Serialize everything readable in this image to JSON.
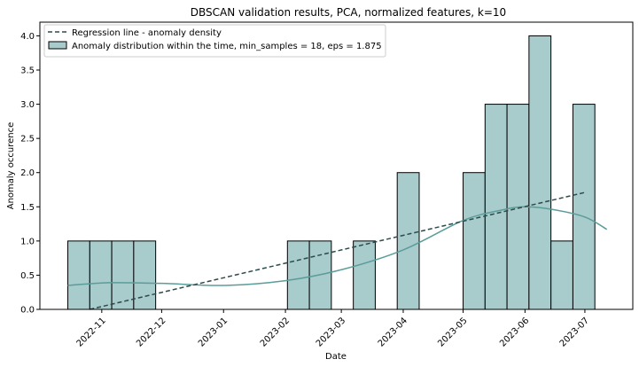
{
  "chart_data": {
    "type": "bar",
    "title": "DBSCAN validation results, PCA, normalized features, k=10",
    "xlabel": "Date",
    "ylabel": "Anomaly occurence",
    "x_tick_labels": [
      "2022-11",
      "2022-12",
      "2023-01",
      "2023-02",
      "2023-03",
      "2023-04",
      "2023-05",
      "2023-06",
      "2023-07"
    ],
    "x_tick_dates": [
      "2022-11-01",
      "2022-12-01",
      "2023-01-01",
      "2023-02-01",
      "2023-03-01",
      "2023-04-01",
      "2023-05-01",
      "2023-06-01",
      "2023-07-01"
    ],
    "xlim": [
      "2022-10-01",
      "2023-07-25"
    ],
    "y_ticks": [
      "0.0",
      "0.5",
      "1.0",
      "1.5",
      "2.0",
      "2.5",
      "3.0",
      "3.5",
      "4.0"
    ],
    "ylim": [
      0,
      4.2
    ],
    "bin_edges": [
      "2022-10-15",
      "2022-10-26",
      "2022-11-06",
      "2022-11-17",
      "2022-11-28",
      "2022-12-09",
      "2022-12-20",
      "2022-12-31",
      "2023-01-11",
      "2023-01-22",
      "2023-02-02",
      "2023-02-13",
      "2023-02-24",
      "2023-03-07",
      "2023-03-18",
      "2023-03-29",
      "2023-04-09",
      "2023-04-20",
      "2023-05-01",
      "2023-05-12",
      "2023-05-23",
      "2023-06-03",
      "2023-06-14",
      "2023-06-25",
      "2023-07-06"
    ],
    "series": [
      {
        "name": "Anomaly distribution within the time, min_samples = 18, eps = 1.875",
        "kind": "histogram",
        "values": [
          1,
          1,
          1,
          1,
          0,
          0,
          0,
          0,
          0,
          0,
          1,
          1,
          0,
          1,
          0,
          2,
          0,
          0,
          2,
          3,
          3,
          4,
          1,
          3
        ],
        "color": "#a8cbcc"
      },
      {
        "name": "Regression line - anomaly density",
        "kind": "line",
        "style": "dashed",
        "x": [
          "2022-10-26",
          "2023-07-01"
        ],
        "y": [
          0.0,
          1.71
        ],
        "color": "#2e4a4a"
      },
      {
        "name": "",
        "kind": "kde",
        "x": [
          "2022-10-15",
          "2022-11-05",
          "2022-12-01",
          "2023-01-01",
          "2023-02-01",
          "2023-03-01",
          "2023-04-01",
          "2023-05-01",
          "2023-05-20",
          "2023-06-01",
          "2023-06-15",
          "2023-07-01",
          "2023-07-12"
        ],
        "y": [
          0.35,
          0.39,
          0.38,
          0.35,
          0.42,
          0.58,
          0.87,
          1.3,
          1.45,
          1.5,
          1.46,
          1.35,
          1.17
        ],
        "color": "#5a9d9a"
      }
    ],
    "legend": {
      "placement": "top-left"
    },
    "grid": false
  }
}
